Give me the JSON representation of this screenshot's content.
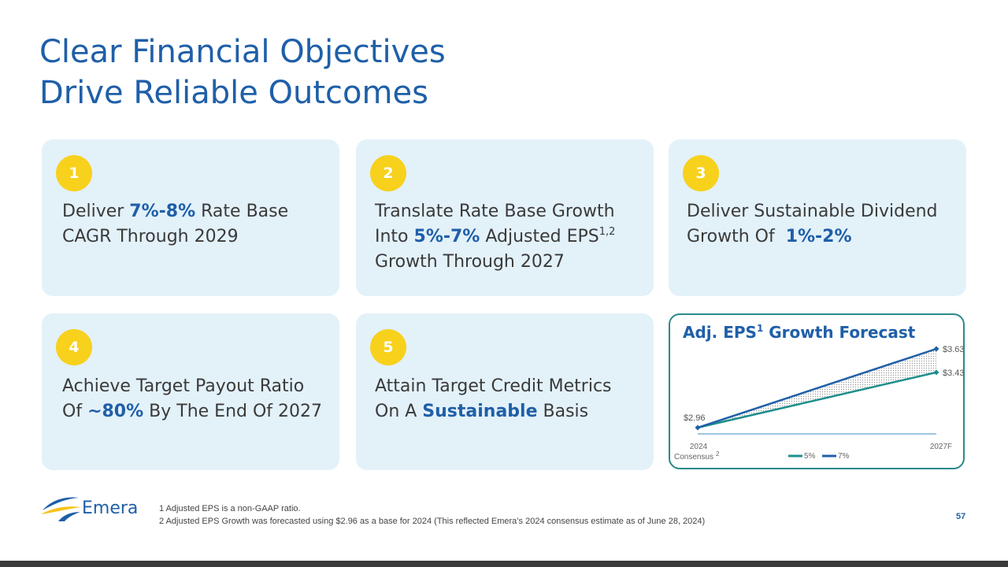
{
  "title": {
    "line1": "Clear Financial Objectives",
    "line2": "Drive Reliable Outcomes"
  },
  "cards": [
    {
      "number": "1",
      "t1": "Deliver ",
      "h1": "7%-8%",
      "t2": " Rate Base",
      "t3": "CAGR Through 2029"
    },
    {
      "number": "2",
      "t1": "Translate Rate Base Growth",
      "t2": "Into ",
      "h1": "5%-7%",
      "t3": " Adjusted EPS",
      "sup": "1,2",
      "t4": "Growth Through 2027"
    },
    {
      "number": "3",
      "t1": "Deliver Sustainable Dividend",
      "t2": "Growth Of  ",
      "h1": "1%-2%"
    },
    {
      "number": "4",
      "t1": "Achieve Target Payout Ratio",
      "t2": "Of ",
      "h1": "~80%",
      "t3": " By The End Of 2027"
    },
    {
      "number": "5",
      "t1": "Attain Target Credit Metrics",
      "t2": "On A ",
      "h1": "Sustainable",
      "t3": " Basis"
    }
  ],
  "chart_data": {
    "type": "line",
    "title_main": "Adj. EPS",
    "title_sup": "1",
    "title_rest": " Growth Forecast",
    "x": [
      "2024",
      "2027F"
    ],
    "x_sub": "Consensus",
    "x_sub_sup": "2",
    "series": [
      {
        "name": "5%",
        "values": [
          2.96,
          3.43
        ],
        "labels": [
          "$2.96",
          "$3.43"
        ],
        "color": "#1e8f8c"
      },
      {
        "name": "7%",
        "values": [
          2.96,
          3.63
        ],
        "labels": [
          "$2.96",
          "$3.63"
        ],
        "color": "#1f5fa8"
      }
    ],
    "shaded_between": true
  },
  "logo": {
    "text": "Emera"
  },
  "footnotes": [
    "1 Adjusted EPS is a non-GAAP ratio.",
    "2 Adjusted EPS Growth was forecasted using $2.96 as a base for 2024 (This reflected Emera’s 2024 consensus estimate as of June 28, 2024)"
  ],
  "page_number": "57",
  "colors": {
    "brand_blue": "#1f5fa8",
    "badge_yellow": "#f7d11b",
    "card_bg": "#e3f1f9",
    "teal": "#1e8f8c"
  }
}
